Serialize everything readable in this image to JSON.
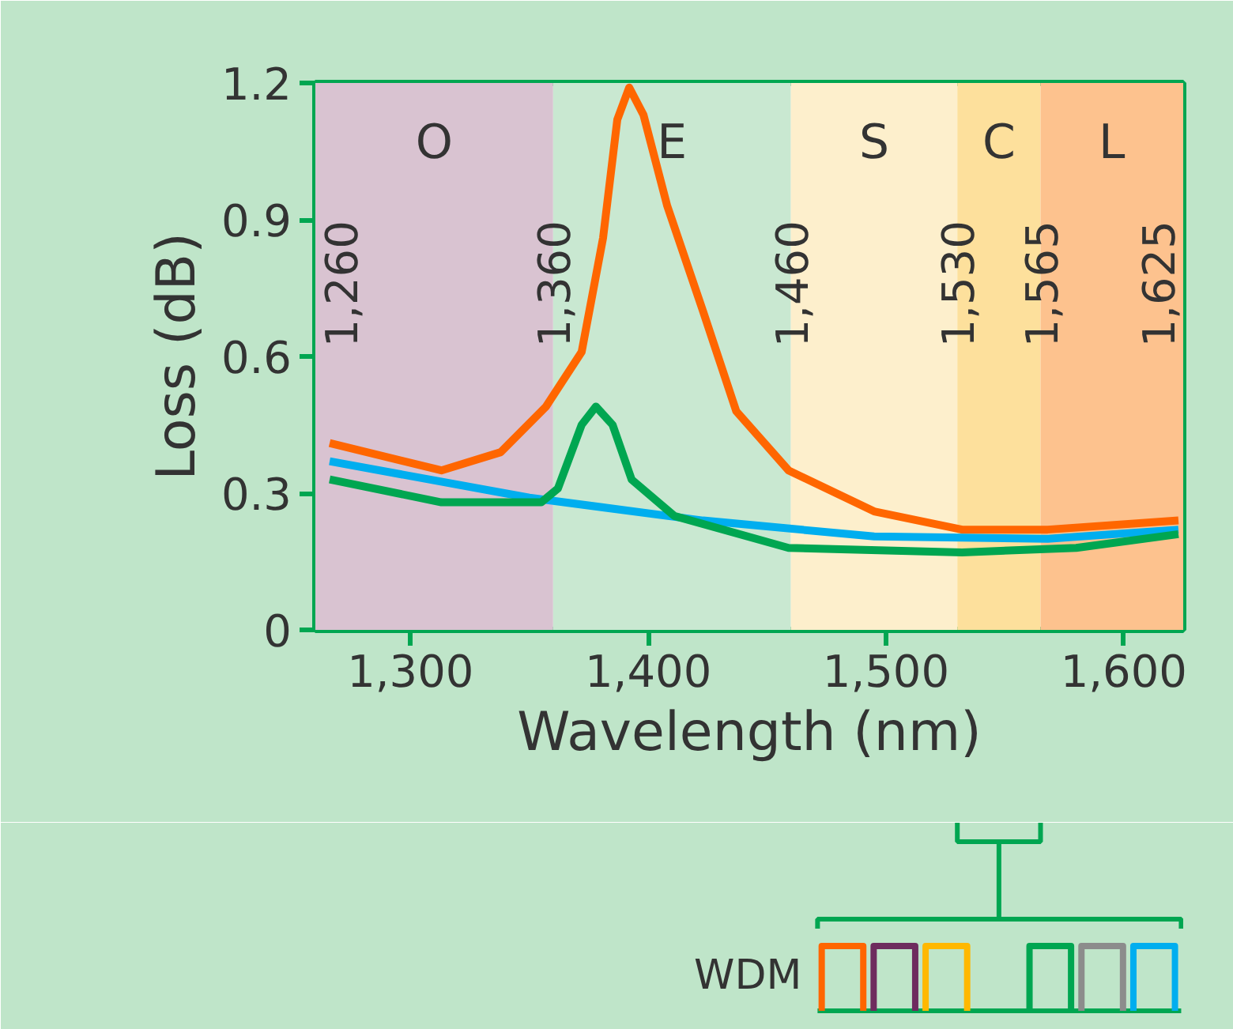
{
  "chart_data": {
    "type": "line",
    "xlabel": "Wavelength (nm)",
    "ylabel": "Loss (dB)",
    "xlim": [
      1260,
      1625
    ],
    "ylim": [
      0,
      1.2
    ],
    "xticks": [
      {
        "value": 1300,
        "label": "1,300"
      },
      {
        "value": 1400,
        "label": "1,400"
      },
      {
        "value": 1500,
        "label": "1,500"
      },
      {
        "value": 1600,
        "label": "1,600"
      }
    ],
    "yticks": [
      0,
      0.3,
      0.6,
      0.9,
      1.2
    ],
    "grid": false,
    "line_style": "solid",
    "marker": "none",
    "series": [
      {
        "color": "#ff6600",
        "x": [
          1266,
          1313,
          1338,
          1357,
          1372,
          1381,
          1387,
          1392,
          1398,
          1408,
          1423,
          1437,
          1459,
          1495,
          1532,
          1568,
          1623
        ],
        "values": [
          0.41,
          0.35,
          0.39,
          0.49,
          0.61,
          0.86,
          1.12,
          1.19,
          1.13,
          0.93,
          0.7,
          0.48,
          0.35,
          0.26,
          0.22,
          0.22,
          0.24
        ]
      },
      {
        "color": "#00aeef",
        "x": [
          1266,
          1350,
          1423,
          1495,
          1568,
          1623
        ],
        "values": [
          0.37,
          0.29,
          0.24,
          0.205,
          0.2,
          0.22
        ]
      },
      {
        "color": "#00a651",
        "x": [
          1266,
          1313,
          1355,
          1362,
          1372,
          1378,
          1385,
          1393,
          1411,
          1459,
          1532,
          1580,
          1623
        ],
        "values": [
          0.33,
          0.28,
          0.28,
          0.31,
          0.45,
          0.49,
          0.45,
          0.33,
          0.25,
          0.18,
          0.17,
          0.18,
          0.21
        ]
      }
    ],
    "bands": [
      {
        "axis": "x",
        "from": 1260,
        "to": 1360,
        "label": "O",
        "color": "#d9c3d1"
      },
      {
        "axis": "x",
        "from": 1360,
        "to": 1460,
        "label": "E",
        "color": "#c9e8d1"
      },
      {
        "axis": "x",
        "from": 1460,
        "to": 1530,
        "label": "S",
        "color": "#fdefcc"
      },
      {
        "axis": "x",
        "from": 1530,
        "to": 1565,
        "label": "C",
        "color": "#fde09c"
      },
      {
        "axis": "x",
        "from": 1565,
        "to": 1625,
        "label": "L",
        "color": "#fdc28e"
      }
    ],
    "annotations": [
      {
        "text": "1,260",
        "x": 1260
      },
      {
        "text": "1,360",
        "x": 1360
      },
      {
        "text": "1,460",
        "x": 1460
      },
      {
        "text": "1,530",
        "x": 1530
      },
      {
        "text": "1,565",
        "x": 1565
      },
      {
        "text": "1,625",
        "x": 1625
      },
      "WDM"
    ]
  }
}
